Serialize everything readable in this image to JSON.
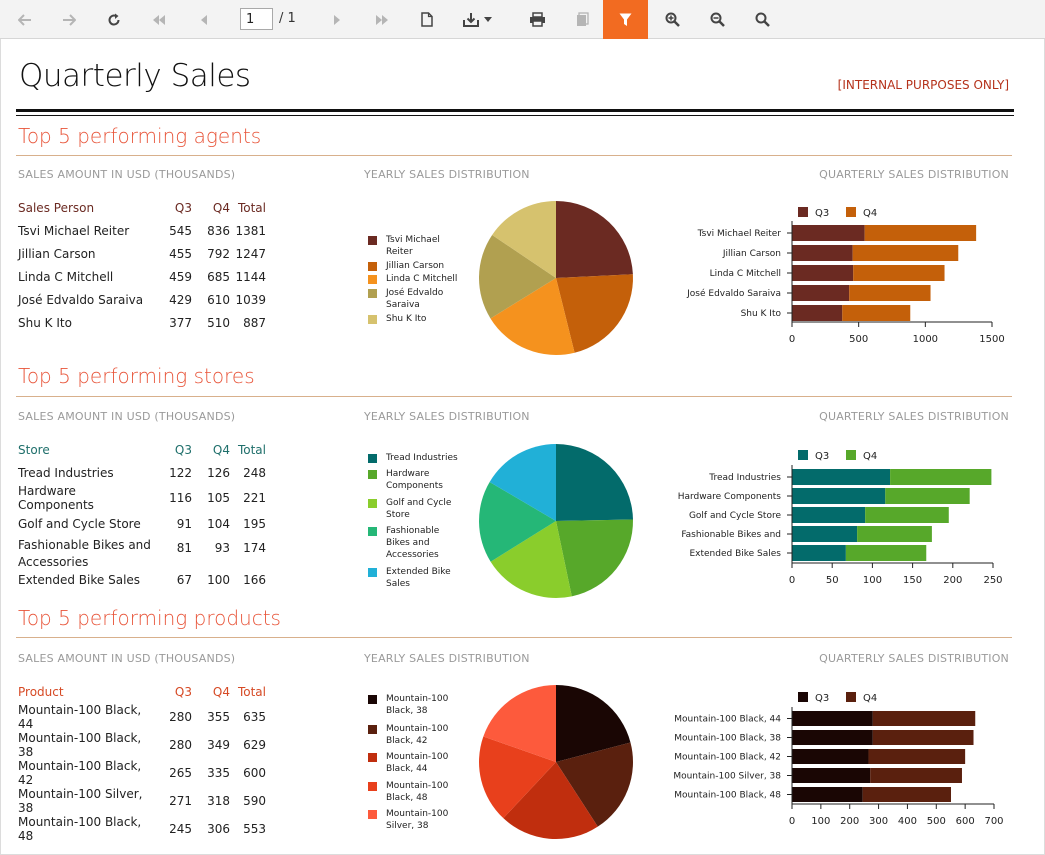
{
  "toolbar": {
    "page_value": "1",
    "page_total": "/ 1",
    "buttons": [
      "back-icon",
      "forward-icon",
      "refresh-icon",
      "first-page-icon",
      "prev-page-icon",
      "next-page-icon",
      "last-page-icon",
      "document-icon",
      "download-icon",
      "print-icon",
      "copy-icon",
      "filter-icon",
      "zoom-in-icon",
      "zoom-out-icon",
      "search-icon"
    ]
  },
  "report": {
    "title": "Quarterly Sales",
    "notice": "[INTERNAL PURPOSES ONLY]"
  },
  "sections": [
    {
      "title": "Top 5 performing agents",
      "caption_table": "SALES AMOUNT IN USD (THOUSANDS)",
      "caption_pie": "YEARLY SALES DISTRIBUTION",
      "caption_bar": "QUARTERLY SALES DISTRIBUTION",
      "header": {
        "name": "Sales Person",
        "q3": "Q3",
        "q4": "Q4",
        "total": "Total"
      },
      "header_color": "#6b2a22",
      "rows": [
        {
          "name": "Tsvi Michael Reiter",
          "q3": "545",
          "q4": "836",
          "total": "1381"
        },
        {
          "name": "Jillian  Carson",
          "q3": "455",
          "q4": "792",
          "total": "1247"
        },
        {
          "name": "Linda C Mitchell",
          "q3": "459",
          "q4": "685",
          "total": "1144"
        },
        {
          "name": "José Edvaldo Saraiva",
          "q3": "429",
          "q4": "610",
          "total": "1039"
        },
        {
          "name": "Shu K Ito",
          "q3": "377",
          "q4": "510",
          "total": "887"
        }
      ]
    },
    {
      "title": "Top 5 performing stores",
      "caption_table": "SALES AMOUNT IN USD (THOUSANDS)",
      "caption_pie": "YEARLY SALES DISTRIBUTION",
      "caption_bar": "QUARTERLY SALES DISTRIBUTION",
      "header": {
        "name": "Store",
        "q3": "Q3",
        "q4": "Q4",
        "total": "Total"
      },
      "header_color": "#1f6f6b",
      "rows": [
        {
          "name": "Tread Industries",
          "q3": "122",
          "q4": "126",
          "total": "248"
        },
        {
          "name": "Hardware Components",
          "q3": "116",
          "q4": "105",
          "total": "221"
        },
        {
          "name": "Golf and Cycle Store",
          "q3": "91",
          "q4": "104",
          "total": "195"
        },
        {
          "name": "Fashionable Bikes and Accessories",
          "q3": "81",
          "q4": "93",
          "total": "174"
        },
        {
          "name": "Extended Bike Sales",
          "q3": "67",
          "q4": "100",
          "total": "166"
        }
      ]
    },
    {
      "title": "Top 5 performing products",
      "caption_table": "SALES AMOUNT IN USD (THOUSANDS)",
      "caption_pie": "YEARLY SALES DISTRIBUTION",
      "caption_bar": "QUARTERLY SALES DISTRIBUTION",
      "header": {
        "name": "Product",
        "q3": "Q3",
        "q4": "Q4",
        "total": "Total"
      },
      "header_color": "#d64a25",
      "rows": [
        {
          "name": "Mountain-100 Black, 44",
          "q3": "280",
          "q4": "355",
          "total": "635"
        },
        {
          "name": "Mountain-100 Black, 38",
          "q3": "280",
          "q4": "349",
          "total": "629"
        },
        {
          "name": "Mountain-100 Black, 42",
          "q3": "265",
          "q4": "335",
          "total": "600"
        },
        {
          "name": "Mountain-100 Silver, 38",
          "q3": "271",
          "q4": "318",
          "total": "590"
        },
        {
          "name": "Mountain-100 Black, 48",
          "q3": "245",
          "q4": "306",
          "total": "553"
        }
      ]
    }
  ],
  "chart_data": [
    {
      "type": "pie",
      "labels": [
        "Tsvi Michael Reiter",
        "Jillian  Carson",
        "Linda C Mitchell",
        "José Edvaldo Saraiva",
        "Shu K Ito"
      ],
      "values": [
        1381,
        1247,
        1144,
        1039,
        887
      ],
      "colors": [
        "#6b2a22",
        "#c4600a",
        "#f5921e",
        "#b1a050",
        "#d6c26e"
      ],
      "legend_placement": "left"
    },
    {
      "type": "bar",
      "orientation": "horizontal",
      "stacked": true,
      "categories": [
        "Tsvi Michael Reiter",
        "Jillian  Carson",
        "Linda C Mitchell",
        "José Edvaldo Saraiva",
        "Shu K Ito"
      ],
      "series": [
        {
          "name": "Q3",
          "values": [
            545,
            455,
            459,
            429,
            377
          ],
          "color": "#6b2a22"
        },
        {
          "name": "Q4",
          "values": [
            836,
            792,
            685,
            610,
            510
          ],
          "color": "#c4600a"
        }
      ],
      "xlim": [
        0,
        1500
      ],
      "ticks": [
        "0",
        "500",
        "1000",
        "1500"
      ],
      "legend_placement": "top-left",
      "grid": false
    },
    {
      "type": "pie",
      "labels": [
        "Tread Industries",
        "Hardware Components",
        "Golf and Cycle Store",
        "Fashionable Bikes and Accessories",
        "Extended Bike Sales"
      ],
      "values": [
        248,
        221,
        195,
        174,
        166
      ],
      "colors": [
        "#036b6b",
        "#57a82a",
        "#8acd2c",
        "#25b777",
        "#21b0d7"
      ],
      "legend_placement": "left"
    },
    {
      "type": "bar",
      "orientation": "horizontal",
      "stacked": true,
      "categories": [
        "Tread Industries",
        "Hardware Components",
        "Golf and Cycle Store",
        "Fashionable Bikes and",
        "Extended Bike Sales"
      ],
      "series": [
        {
          "name": "Q3",
          "values": [
            122,
            116,
            91,
            81,
            67
          ],
          "color": "#036b6b"
        },
        {
          "name": "Q4",
          "values": [
            126,
            105,
            104,
            93,
            100
          ],
          "color": "#57a82a"
        }
      ],
      "xlim": [
        0,
        250
      ],
      "ticks": [
        "0",
        "50",
        "100",
        "150",
        "200",
        "250"
      ],
      "legend_placement": "top-left",
      "grid": false
    },
    {
      "type": "pie",
      "labels": [
        "Mountain-100 Black, 38",
        "Mountain-100 Black, 42",
        "Mountain-100 Black, 44",
        "Mountain-100 Black, 48",
        "Mountain-100 Silver, 38"
      ],
      "values": [
        629,
        600,
        635,
        553,
        590
      ],
      "colors": [
        "#1a0604",
        "#5a200e",
        "#c02e0e",
        "#e8401c",
        "#fd5a3c"
      ],
      "legend_placement": "left"
    },
    {
      "type": "bar",
      "orientation": "horizontal",
      "stacked": true,
      "categories": [
        "Mountain-100 Black, 44",
        "Mountain-100 Black, 38",
        "Mountain-100 Black, 42",
        "Mountain-100 Silver, 38",
        "Mountain-100 Black, 48"
      ],
      "series": [
        {
          "name": "Q3",
          "values": [
            280,
            280,
            265,
            271,
            245
          ],
          "color": "#1a0604"
        },
        {
          "name": "Q4",
          "values": [
            355,
            349,
            335,
            318,
            306
          ],
          "color": "#5a200e"
        }
      ],
      "xlim": [
        0,
        700
      ],
      "ticks": [
        "0",
        "100",
        "200",
        "300",
        "400",
        "500",
        "600",
        "700"
      ],
      "legend_placement": "top-left",
      "grid": false
    }
  ]
}
